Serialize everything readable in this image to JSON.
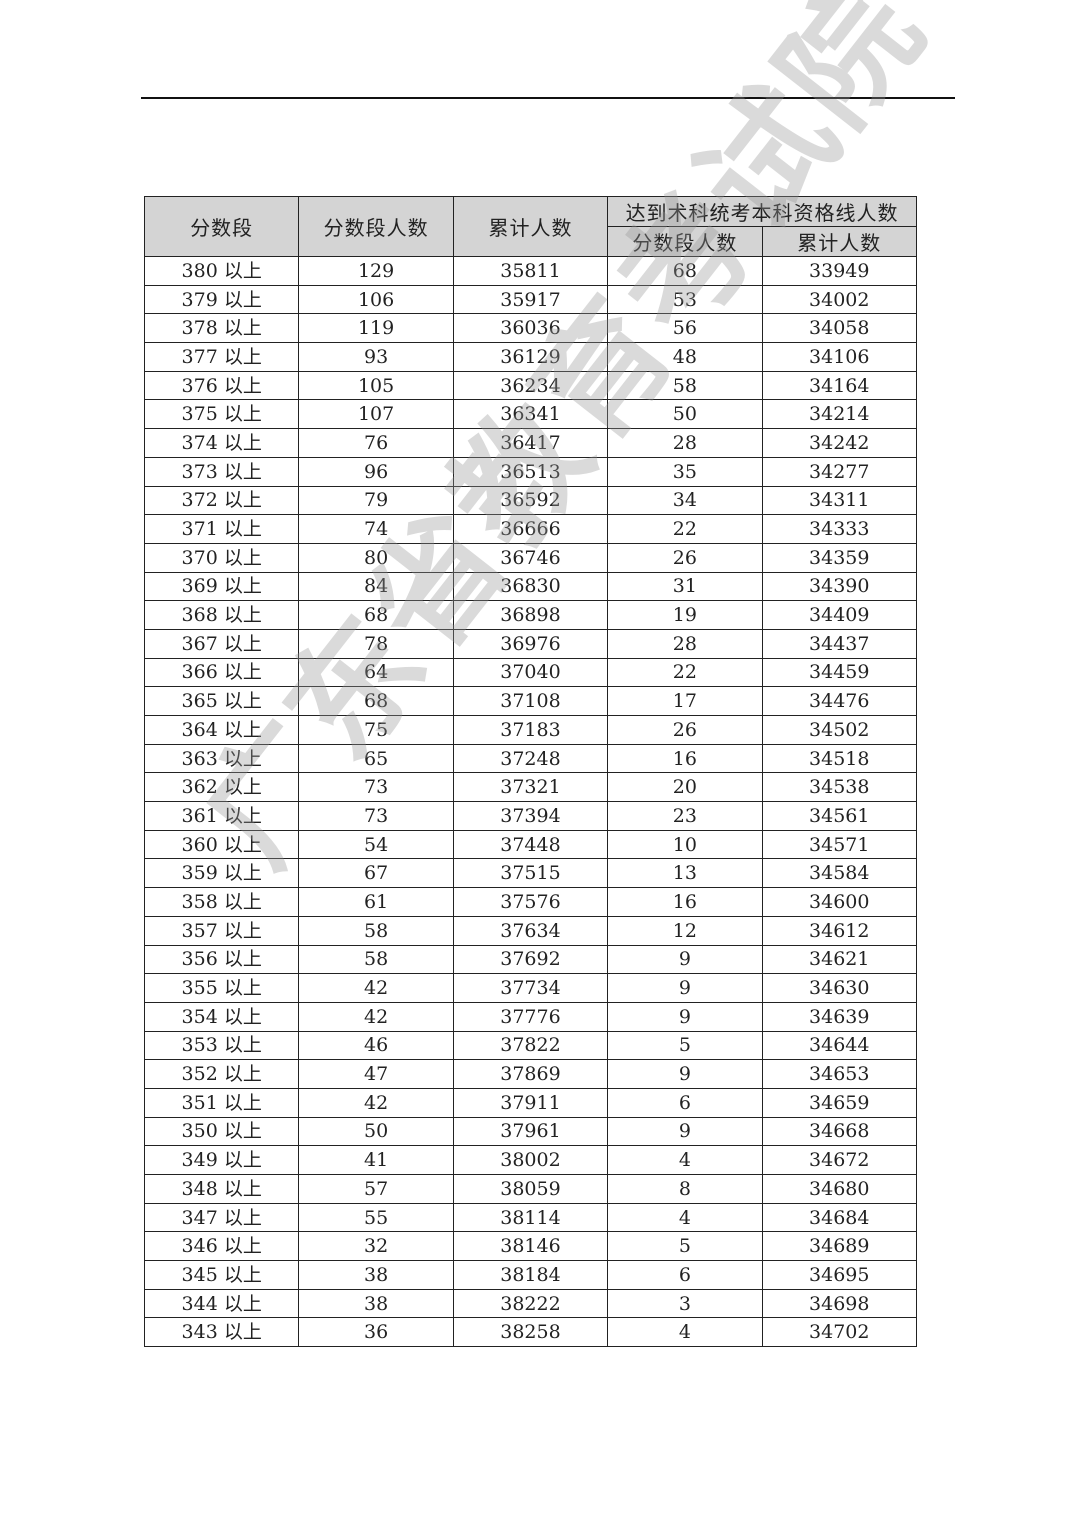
{
  "table": {
    "headers": {
      "score_band": "分数段",
      "band_count": "分数段人数",
      "cumulative": "累计人数",
      "group_title": "达到术科统考本科资格线人数",
      "sub_band_count": "分数段人数",
      "sub_cumulative": "累计人数"
    },
    "rows": [
      [
        "380 以上",
        "129",
        "35811",
        "68",
        "33949"
      ],
      [
        "379 以上",
        "106",
        "35917",
        "53",
        "34002"
      ],
      [
        "378 以上",
        "119",
        "36036",
        "56",
        "34058"
      ],
      [
        "377 以上",
        "93",
        "36129",
        "48",
        "34106"
      ],
      [
        "376 以上",
        "105",
        "36234",
        "58",
        "34164"
      ],
      [
        "375 以上",
        "107",
        "36341",
        "50",
        "34214"
      ],
      [
        "374 以上",
        "76",
        "36417",
        "28",
        "34242"
      ],
      [
        "373 以上",
        "96",
        "36513",
        "35",
        "34277"
      ],
      [
        "372 以上",
        "79",
        "36592",
        "34",
        "34311"
      ],
      [
        "371 以上",
        "74",
        "36666",
        "22",
        "34333"
      ],
      [
        "370 以上",
        "80",
        "36746",
        "26",
        "34359"
      ],
      [
        "369 以上",
        "84",
        "36830",
        "31",
        "34390"
      ],
      [
        "368 以上",
        "68",
        "36898",
        "19",
        "34409"
      ],
      [
        "367 以上",
        "78",
        "36976",
        "28",
        "34437"
      ],
      [
        "366 以上",
        "64",
        "37040",
        "22",
        "34459"
      ],
      [
        "365 以上",
        "68",
        "37108",
        "17",
        "34476"
      ],
      [
        "364 以上",
        "75",
        "37183",
        "26",
        "34502"
      ],
      [
        "363 以上",
        "65",
        "37248",
        "16",
        "34518"
      ],
      [
        "362 以上",
        "73",
        "37321",
        "20",
        "34538"
      ],
      [
        "361 以上",
        "73",
        "37394",
        "23",
        "34561"
      ],
      [
        "360 以上",
        "54",
        "37448",
        "10",
        "34571"
      ],
      [
        "359 以上",
        "67",
        "37515",
        "13",
        "34584"
      ],
      [
        "358 以上",
        "61",
        "37576",
        "16",
        "34600"
      ],
      [
        "357 以上",
        "58",
        "37634",
        "12",
        "34612"
      ],
      [
        "356 以上",
        "58",
        "37692",
        "9",
        "34621"
      ],
      [
        "355 以上",
        "42",
        "37734",
        "9",
        "34630"
      ],
      [
        "354 以上",
        "42",
        "37776",
        "9",
        "34639"
      ],
      [
        "353 以上",
        "46",
        "37822",
        "5",
        "34644"
      ],
      [
        "352 以上",
        "47",
        "37869",
        "9",
        "34653"
      ],
      [
        "351 以上",
        "42",
        "37911",
        "6",
        "34659"
      ],
      [
        "350 以上",
        "50",
        "37961",
        "9",
        "34668"
      ],
      [
        "349 以上",
        "41",
        "38002",
        "4",
        "34672"
      ],
      [
        "348 以上",
        "57",
        "38059",
        "8",
        "34680"
      ],
      [
        "347 以上",
        "55",
        "38114",
        "4",
        "34684"
      ],
      [
        "346 以上",
        "32",
        "38146",
        "5",
        "34689"
      ],
      [
        "345 以上",
        "38",
        "38184",
        "6",
        "34695"
      ],
      [
        "344 以上",
        "38",
        "38222",
        "3",
        "34698"
      ],
      [
        "343 以上",
        "36",
        "38258",
        "4",
        "34702"
      ]
    ]
  },
  "watermark": "广东省教育考试院",
  "colors": {
    "header_bg": "#d4d4d4",
    "border": "#222222"
  }
}
